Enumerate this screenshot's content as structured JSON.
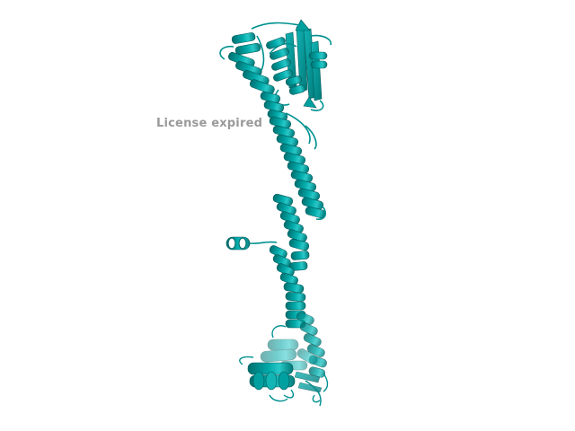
{
  "viewer": {
    "watermark_text": "License expired",
    "background_color": "#ffffff",
    "cartoon_color": "#00a0a0",
    "cartoon_shadow": "#006e6e",
    "cartoon_highlight": "#28c8c8",
    "watermark_color": "#9a9a9a"
  }
}
